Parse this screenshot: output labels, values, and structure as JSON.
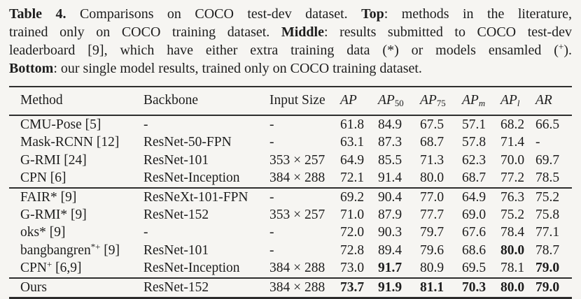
{
  "colors": {
    "ink": "#1d1d1d",
    "rule": "#2e2e2e",
    "paper": "#f3f2ef"
  },
  "caption": {
    "lines": [
      {
        "segments": [
          {
            "t": "Table 4.",
            "b": true
          },
          {
            "t": " Comparisons on COCO test-dev dataset. "
          },
          {
            "t": "Top",
            "b": true
          },
          {
            "t": ": methods in the literature,"
          }
        ]
      },
      {
        "segments": [
          {
            "t": "trained only on COCO training dataset. "
          },
          {
            "t": "Middle",
            "b": true
          },
          {
            "t": ": results submitted to COCO test-dev"
          }
        ]
      },
      {
        "segments": [
          {
            "t": "leaderboard [9], which have either extra training data (*) or models ensamled ("
          },
          {
            "t": "+",
            "sup": true
          },
          {
            "t": ")."
          }
        ]
      },
      {
        "segments": [
          {
            "t": "Bottom",
            "b": true
          },
          {
            "t": ": our single model results, trained only on COCO training dataset."
          }
        ]
      }
    ]
  },
  "table": {
    "header": [
      {
        "key": "method",
        "segments": [
          {
            "t": "Method"
          }
        ]
      },
      {
        "key": "backbone",
        "segments": [
          {
            "t": "Backbone"
          }
        ]
      },
      {
        "key": "input-size",
        "segments": [
          {
            "t": "Input Size"
          }
        ]
      },
      {
        "key": "ap",
        "segments": [
          {
            "t": "AP",
            "i": true
          }
        ]
      },
      {
        "key": "ap50",
        "segments": [
          {
            "t": "AP",
            "i": true
          },
          {
            "t": "50",
            "sub": true
          }
        ]
      },
      {
        "key": "ap75",
        "segments": [
          {
            "t": "AP",
            "i": true
          },
          {
            "t": "75",
            "sub": true
          }
        ]
      },
      {
        "key": "apm",
        "segments": [
          {
            "t": "AP",
            "i": true
          },
          {
            "t": "m",
            "sub": true,
            "i": true
          }
        ]
      },
      {
        "key": "apl",
        "segments": [
          {
            "t": "AP",
            "i": true
          },
          {
            "t": "l",
            "sub": true,
            "i": true
          }
        ]
      },
      {
        "key": "ar",
        "segments": [
          {
            "t": "AR",
            "i": true
          }
        ]
      }
    ],
    "sections": [
      {
        "name": "top-literature",
        "rows": [
          {
            "cells": [
              [
                {
                  "t": "CMU-Pose [5]"
                }
              ],
              [
                {
                  "t": "-"
                }
              ],
              [
                {
                  "t": "-"
                }
              ],
              [
                {
                  "t": "61.8"
                }
              ],
              [
                {
                  "t": "84.9"
                }
              ],
              [
                {
                  "t": "67.5"
                }
              ],
              [
                {
                  "t": "57.1"
                }
              ],
              [
                {
                  "t": "68.2"
                }
              ],
              [
                {
                  "t": "66.5"
                }
              ]
            ]
          },
          {
            "cells": [
              [
                {
                  "t": "Mask-RCNN [12]"
                }
              ],
              [
                {
                  "t": "ResNet-50-FPN"
                }
              ],
              [
                {
                  "t": "-"
                }
              ],
              [
                {
                  "t": "63.1"
                }
              ],
              [
                {
                  "t": "87.3"
                }
              ],
              [
                {
                  "t": "68.7"
                }
              ],
              [
                {
                  "t": "57.8"
                }
              ],
              [
                {
                  "t": "71.4"
                }
              ],
              [
                {
                  "t": "-"
                }
              ]
            ]
          },
          {
            "cells": [
              [
                {
                  "t": "G-RMI [24]"
                }
              ],
              [
                {
                  "t": "ResNet-101"
                }
              ],
              [
                {
                  "t": "353 × 257"
                }
              ],
              [
                {
                  "t": "64.9"
                }
              ],
              [
                {
                  "t": "85.5"
                }
              ],
              [
                {
                  "t": "71.3"
                }
              ],
              [
                {
                  "t": "62.3"
                }
              ],
              [
                {
                  "t": "70.0"
                }
              ],
              [
                {
                  "t": "69.7"
                }
              ]
            ]
          },
          {
            "cells": [
              [
                {
                  "t": "CPN [6]"
                }
              ],
              [
                {
                  "t": "ResNet-Inception"
                }
              ],
              [
                {
                  "t": "384 × 288"
                }
              ],
              [
                {
                  "t": "72.1"
                }
              ],
              [
                {
                  "t": "91.4"
                }
              ],
              [
                {
                  "t": "80.0"
                }
              ],
              [
                {
                  "t": "68.7"
                }
              ],
              [
                {
                  "t": "77.2"
                }
              ],
              [
                {
                  "t": "78.5"
                }
              ]
            ]
          }
        ]
      },
      {
        "name": "middle-leaderboard",
        "rows": [
          {
            "cells": [
              [
                {
                  "t": "FAIR* [9]"
                }
              ],
              [
                {
                  "t": "ResNeXt-101-FPN"
                }
              ],
              [
                {
                  "t": "-"
                }
              ],
              [
                {
                  "t": "69.2"
                }
              ],
              [
                {
                  "t": "90.4"
                }
              ],
              [
                {
                  "t": "77.0"
                }
              ],
              [
                {
                  "t": "64.9"
                }
              ],
              [
                {
                  "t": "76.3"
                }
              ],
              [
                {
                  "t": "75.2"
                }
              ]
            ]
          },
          {
            "cells": [
              [
                {
                  "t": "G-RMI* [9]"
                }
              ],
              [
                {
                  "t": "ResNet-152"
                }
              ],
              [
                {
                  "t": "353 × 257"
                }
              ],
              [
                {
                  "t": "71.0"
                }
              ],
              [
                {
                  "t": "87.9"
                }
              ],
              [
                {
                  "t": "77.7"
                }
              ],
              [
                {
                  "t": "69.0"
                }
              ],
              [
                {
                  "t": "75.2"
                }
              ],
              [
                {
                  "t": "75.8"
                }
              ]
            ]
          },
          {
            "cells": [
              [
                {
                  "t": "oks* [9]"
                }
              ],
              [
                {
                  "t": "-"
                }
              ],
              [
                {
                  "t": "-"
                }
              ],
              [
                {
                  "t": "72.0"
                }
              ],
              [
                {
                  "t": "90.3"
                }
              ],
              [
                {
                  "t": "79.7"
                }
              ],
              [
                {
                  "t": "67.6"
                }
              ],
              [
                {
                  "t": "78.4"
                }
              ],
              [
                {
                  "t": "77.1"
                }
              ]
            ]
          },
          {
            "cells": [
              [
                {
                  "t": "bangbangren"
                },
                {
                  "t": "*+",
                  "sup": true
                },
                {
                  "t": " [9]"
                }
              ],
              [
                {
                  "t": "ResNet-101"
                }
              ],
              [
                {
                  "t": "-"
                }
              ],
              [
                {
                  "t": "72.8"
                }
              ],
              [
                {
                  "t": "89.4"
                }
              ],
              [
                {
                  "t": "79.6"
                }
              ],
              [
                {
                  "t": "68.6"
                }
              ],
              [
                {
                  "t": "80.0",
                  "b": true
                }
              ],
              [
                {
                  "t": "78.7"
                }
              ]
            ]
          },
          {
            "cells": [
              [
                {
                  "t": "CPN"
                },
                {
                  "t": "+",
                  "sup": true
                },
                {
                  "t": " [6,9]"
                }
              ],
              [
                {
                  "t": "ResNet-Inception"
                }
              ],
              [
                {
                  "t": "384 × 288"
                }
              ],
              [
                {
                  "t": "73.0"
                }
              ],
              [
                {
                  "t": "91.7",
                  "b": true
                }
              ],
              [
                {
                  "t": "80.9"
                }
              ],
              [
                {
                  "t": "69.5"
                }
              ],
              [
                {
                  "t": "78.1"
                }
              ],
              [
                {
                  "t": "79.0",
                  "b": true
                }
              ]
            ]
          }
        ]
      },
      {
        "name": "bottom-ours",
        "rows": [
          {
            "cells": [
              [
                {
                  "t": "Ours"
                }
              ],
              [
                {
                  "t": "ResNet-152"
                }
              ],
              [
                {
                  "t": "384 × 288"
                }
              ],
              [
                {
                  "t": "73.7",
                  "b": true
                }
              ],
              [
                {
                  "t": "91.9",
                  "b": true
                }
              ],
              [
                {
                  "t": "81.1",
                  "b": true
                }
              ],
              [
                {
                  "t": "70.3",
                  "b": true
                }
              ],
              [
                {
                  "t": "80.0",
                  "b": true
                }
              ],
              [
                {
                  "t": "79.0",
                  "b": true
                }
              ]
            ]
          }
        ]
      }
    ]
  }
}
